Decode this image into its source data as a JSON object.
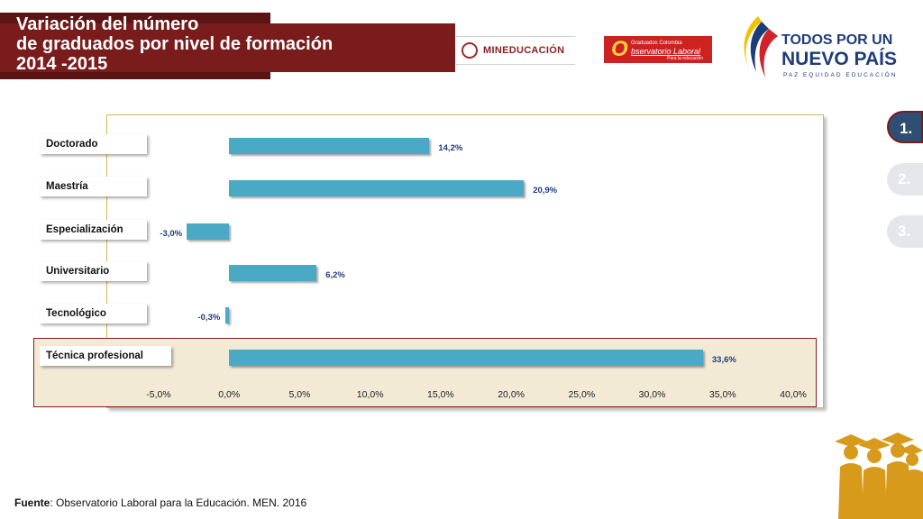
{
  "header": {
    "title": "Variación del número\nde graduados por nivel de formación\n2014 -2015"
  },
  "logos": {
    "mineducacion": "MINEDUCACIÓN",
    "observatorio_line1": "Graduados Colombia",
    "observatorio_mark": "O",
    "observatorio_line2": "bservatorio Laboral",
    "observatorio_line3": "Para la educación",
    "todos_line1": "TODOS POR UN",
    "todos_line2": "NUEVO PAÍS",
    "todos_line3": "PAZ EQUIDAD EDUCACIÓN"
  },
  "nav": [
    {
      "label": "1.",
      "active": true
    },
    {
      "label": "2.",
      "active": false
    },
    {
      "label": "3.",
      "active": false
    }
  ],
  "source": {
    "prefix": "Fuente",
    "text": ": Observatorio Laboral para la Educación. MEN. 2016"
  },
  "chart_data": {
    "type": "bar",
    "orientation": "horizontal",
    "categories": [
      "Doctorado",
      "Maestría",
      "Especialización",
      "Universitario",
      "Tecnológico",
      "Técnica profesional"
    ],
    "values": [
      14.2,
      20.9,
      -3.0,
      6.2,
      -0.3,
      33.6
    ],
    "value_labels": [
      "14,2%",
      "20,9%",
      "-3,0%",
      "6,2%",
      "-0,3%",
      "33,6%"
    ],
    "xlim": [
      -5,
      40
    ],
    "xticks": [
      "-5,0%",
      "0,0%",
      "5,0%",
      "10,0%",
      "15,0%",
      "20,0%",
      "25,0%",
      "30,0%",
      "35,0%",
      "40,0%"
    ],
    "highlighted_category": "Técnica profesional",
    "bar_color": "#4aaac6",
    "grid": false
  },
  "colors": {
    "title_bg": "#7a1c1c",
    "frame": "#d9b650",
    "highlight_bg": "#f3ead6",
    "value_text": "#1e3c7a"
  }
}
